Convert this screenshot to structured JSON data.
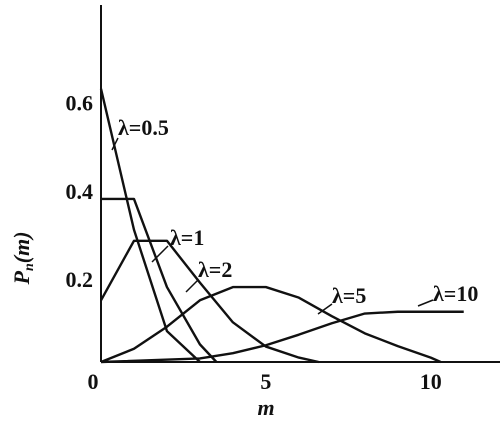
{
  "chart_data": {
    "type": "line",
    "y_label": "P",
    "y_label_sub": "n",
    "y_label_rest": "(m)",
    "x_label": "m",
    "xlim": [
      0,
      12.1
    ],
    "ylim": [
      0,
      0.81
    ],
    "xticks": [
      0,
      5,
      10
    ],
    "yticks": [
      0.2,
      0.4,
      0.6
    ],
    "series": [
      {
        "name": "λ=0.5",
        "color": "#111111",
        "x": [
          0,
          1,
          2,
          3
        ],
        "values": [
          0.62,
          0.3,
          0.07,
          0
        ]
      },
      {
        "name": "λ=1",
        "color": "#111111",
        "x": [
          0,
          1,
          2,
          3,
          3.5
        ],
        "values": [
          0.37,
          0.37,
          0.17,
          0.04,
          0
        ]
      },
      {
        "name": "λ=2",
        "color": "#111111",
        "x": [
          0,
          1,
          2,
          3,
          4,
          5,
          6,
          6.6
        ],
        "values": [
          0.14,
          0.275,
          0.275,
          0.18,
          0.09,
          0.035,
          0.01,
          0
        ]
      },
      {
        "name": "λ=5",
        "color": "#111111",
        "x": [
          0,
          1,
          2,
          3,
          4,
          5,
          6,
          7,
          8,
          9,
          10,
          10.3
        ],
        "values": [
          0,
          0.03,
          0.08,
          0.14,
          0.17,
          0.17,
          0.146,
          0.104,
          0.065,
          0.036,
          0.01,
          0
        ]
      },
      {
        "name": "λ=10",
        "color": "#111111",
        "x": [
          0,
          3,
          4,
          5,
          6,
          7,
          8,
          9,
          11
        ],
        "values": [
          0,
          0.008,
          0.02,
          0.038,
          0.062,
          0.088,
          0.11,
          0.114,
          0.114
        ]
      }
    ]
  }
}
